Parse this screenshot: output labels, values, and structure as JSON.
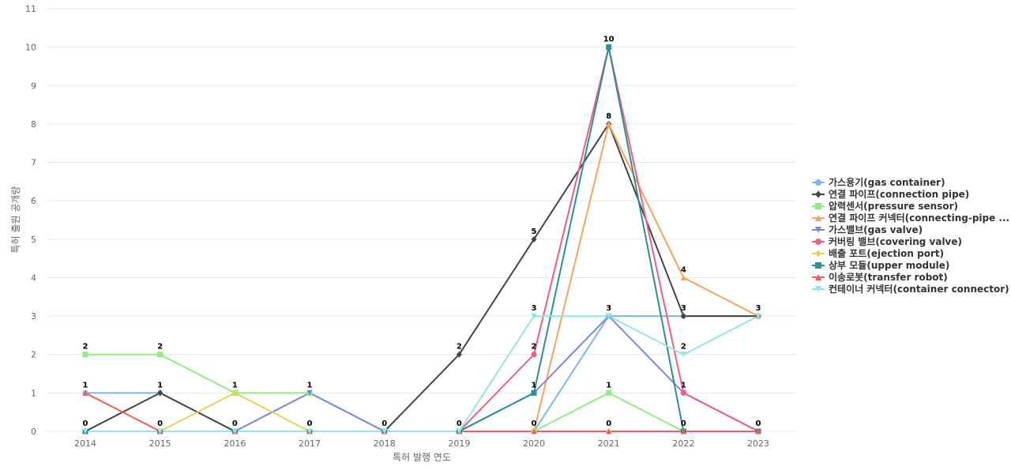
{
  "chart_data": {
    "type": "line",
    "title": "",
    "xlabel": "특허 발행 연도",
    "ylabel": "특허 출원 공개량",
    "x": [
      "2014",
      "2015",
      "2016",
      "2017",
      "2018",
      "2019",
      "2020",
      "2021",
      "2022",
      "2023"
    ],
    "ylim": [
      0,
      11
    ],
    "yticks": [
      0,
      1,
      2,
      3,
      4,
      5,
      6,
      7,
      8,
      9,
      10,
      11
    ],
    "grid": true,
    "legend_position": "right",
    "series": [
      {
        "name": "가스용기(gas container)",
        "color": "#7cb5ec",
        "marker": "circle",
        "values": [
          1,
          1,
          0,
          1,
          0,
          0,
          0,
          3,
          3,
          3
        ]
      },
      {
        "name": "연결 파이프(connection pipe)",
        "color": "#434348",
        "marker": "diamond",
        "values": [
          0,
          1,
          0,
          0,
          0,
          2,
          5,
          8,
          3,
          3
        ]
      },
      {
        "name": "압력센서(pressure sensor)",
        "color": "#90ed7d",
        "marker": "square",
        "values": [
          2,
          2,
          1,
          1,
          0,
          0,
          0,
          1,
          0,
          0
        ]
      },
      {
        "name": "연결 파이프 커넥터(connecting-pipe ...",
        "color": "#f7a35c",
        "marker": "triangle",
        "values": [
          0,
          0,
          0,
          0,
          0,
          0,
          0,
          8,
          4,
          3
        ]
      },
      {
        "name": "가스밸브(gas valve)",
        "color": "#8085e9",
        "marker": "triangle-down",
        "values": [
          0,
          0,
          0,
          1,
          0,
          0,
          1,
          3,
          1,
          0
        ]
      },
      {
        "name": "커버링 밸브(covering valve)",
        "color": "#f15c80",
        "marker": "circle",
        "values": [
          0,
          0,
          0,
          0,
          0,
          0,
          2,
          10,
          1,
          0
        ]
      },
      {
        "name": "배출 포트(ejection port)",
        "color": "#e4d354",
        "marker": "diamond",
        "values": [
          0,
          0,
          1,
          0,
          0,
          0,
          0,
          0,
          0,
          0
        ]
      },
      {
        "name": "상부 모듈(upper module)",
        "color": "#2b908f",
        "marker": "square",
        "values": [
          0,
          0,
          0,
          0,
          0,
          0,
          1,
          10,
          0,
          0
        ]
      },
      {
        "name": "이송로봇(transfer robot)",
        "color": "#f45b5b",
        "marker": "triangle",
        "values": [
          1,
          0,
          0,
          0,
          0,
          0,
          0,
          0,
          0,
          0
        ]
      },
      {
        "name": "컨테이너 커넥터(container connector)",
        "color": "#91e8e1",
        "marker": "triangle-down",
        "values": [
          0,
          0,
          0,
          0,
          0,
          0,
          3,
          3,
          2,
          3
        ]
      }
    ],
    "data_labels": [
      {
        "x": "2014",
        "text": "2",
        "value": 2
      },
      {
        "x": "2014",
        "text": "1",
        "value": 1
      },
      {
        "x": "2014",
        "text": "0",
        "value": 0
      },
      {
        "x": "2015",
        "text": "2",
        "value": 2
      },
      {
        "x": "2015",
        "text": "1",
        "value": 1
      },
      {
        "x": "2015",
        "text": "0",
        "value": 0
      },
      {
        "x": "2016",
        "text": "1",
        "value": 1
      },
      {
        "x": "2016",
        "text": "0",
        "value": 0
      },
      {
        "x": "2017",
        "text": "1",
        "value": 1
      },
      {
        "x": "2017",
        "text": "0",
        "value": 0
      },
      {
        "x": "2018",
        "text": "0",
        "value": 0
      },
      {
        "x": "2019",
        "text": "2",
        "value": 2
      },
      {
        "x": "2019",
        "text": "0",
        "value": 0
      },
      {
        "x": "2020",
        "text": "5",
        "value": 5
      },
      {
        "x": "2020",
        "text": "3",
        "value": 3
      },
      {
        "x": "2020",
        "text": "2",
        "value": 2
      },
      {
        "x": "2020",
        "text": "1",
        "value": 1
      },
      {
        "x": "2020",
        "text": "0",
        "value": 0
      },
      {
        "x": "2021",
        "text": "10",
        "value": 10
      },
      {
        "x": "2021",
        "text": "8",
        "value": 8
      },
      {
        "x": "2021",
        "text": "3",
        "value": 3
      },
      {
        "x": "2021",
        "text": "1",
        "value": 1
      },
      {
        "x": "2021",
        "text": "0",
        "value": 0
      },
      {
        "x": "2022",
        "text": "4",
        "value": 4
      },
      {
        "x": "2022",
        "text": "3",
        "value": 3
      },
      {
        "x": "2022",
        "text": "2",
        "value": 2
      },
      {
        "x": "2022",
        "text": "1",
        "value": 1
      },
      {
        "x": "2022",
        "text": "0",
        "value": 0
      },
      {
        "x": "2023",
        "text": "3",
        "value": 3
      },
      {
        "x": "2023",
        "text": "0",
        "value": 0
      }
    ]
  }
}
